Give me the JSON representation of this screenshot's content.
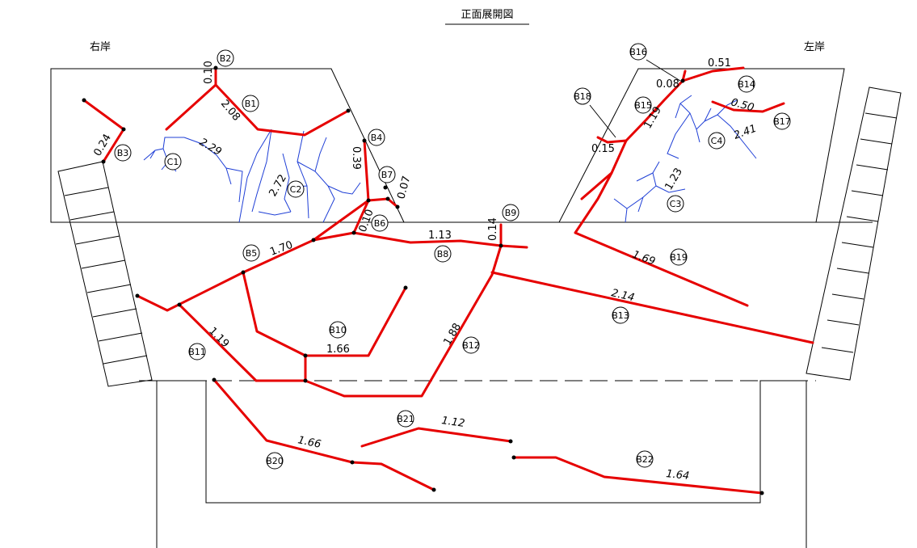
{
  "title": "正面展開図",
  "bank_right": "右岸",
  "bank_left": "左岸",
  "cracks": [
    {
      "id": "B1",
      "width": "2.08"
    },
    {
      "id": "B2",
      "width": "0.10"
    },
    {
      "id": "B3",
      "width": "0.24"
    },
    {
      "id": "B4",
      "width": "0.39"
    },
    {
      "id": "B5",
      "width": "1.70"
    },
    {
      "id": "B6",
      "width": "0.10"
    },
    {
      "id": "B7",
      "width": "0.07"
    },
    {
      "id": "B8",
      "width": "1.13"
    },
    {
      "id": "B9",
      "width": "0.14"
    },
    {
      "id": "B10",
      "width": "1.66"
    },
    {
      "id": "B11",
      "width": "1.19"
    },
    {
      "id": "B12",
      "width": "1.88"
    },
    {
      "id": "B13",
      "width": "2.14"
    },
    {
      "id": "B14",
      "width": "0.51"
    },
    {
      "id": "B15",
      "width": "1.19"
    },
    {
      "id": "B16",
      "width": "0.08"
    },
    {
      "id": "B17",
      "width": "0.50"
    },
    {
      "id": "B18",
      "width": "0.15"
    },
    {
      "id": "B19",
      "width": "1.69"
    },
    {
      "id": "B20",
      "width": "1.66"
    },
    {
      "id": "B21",
      "width": "1.12"
    },
    {
      "id": "B22",
      "width": "1.64"
    }
  ],
  "fine_cracks": [
    {
      "id": "C1",
      "width": "2.29"
    },
    {
      "id": "C2",
      "width": "2.72"
    },
    {
      "id": "C3",
      "width": "1.23"
    },
    {
      "id": "C4",
      "width": "2.41"
    }
  ],
  "colors": {
    "crack": "#e60000",
    "fine_crack": "#1f3fd6",
    "structure": "#000000"
  }
}
